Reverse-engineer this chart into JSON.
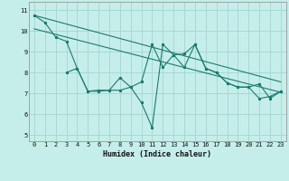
{
  "xlabel": "Humidex (Indice chaleur)",
  "background_color": "#c5eeea",
  "grid_color": "#a8d8d4",
  "line_color": "#1e7a6e",
  "xlim": [
    -0.5,
    23.5
  ],
  "ylim": [
    4.7,
    11.4
  ],
  "xticks": [
    0,
    1,
    2,
    3,
    4,
    5,
    6,
    7,
    8,
    9,
    10,
    11,
    12,
    13,
    14,
    15,
    16,
    17,
    18,
    19,
    20,
    21,
    22,
    23
  ],
  "yticks": [
    5,
    6,
    7,
    8,
    9,
    10,
    11
  ],
  "line1_x": [
    0,
    1,
    2,
    3,
    4,
    5,
    6,
    7,
    8,
    9,
    10,
    11,
    12,
    13,
    14,
    15,
    16,
    17,
    18,
    19,
    20,
    21,
    22,
    23
  ],
  "line1_y": [
    10.75,
    10.4,
    9.7,
    9.5,
    8.2,
    7.1,
    7.1,
    7.15,
    7.15,
    7.3,
    6.55,
    5.35,
    9.35,
    8.85,
    8.9,
    9.35,
    8.2,
    8.0,
    7.5,
    7.3,
    7.3,
    6.75,
    6.85,
    7.1
  ],
  "line2_x": [
    3,
    4,
    5,
    6,
    7,
    8,
    9,
    10,
    11,
    12,
    13,
    14,
    15,
    16,
    17,
    18,
    19,
    20,
    21,
    22,
    23
  ],
  "line2_y": [
    8.0,
    8.2,
    7.1,
    7.15,
    7.15,
    7.75,
    7.3,
    7.55,
    9.35,
    8.25,
    8.85,
    8.25,
    9.35,
    8.2,
    8.0,
    7.5,
    7.3,
    7.3,
    7.45,
    6.75,
    7.1
  ],
  "trend1_x": [
    0,
    23
  ],
  "trend1_y": [
    10.75,
    7.55
  ],
  "trend2_x": [
    0,
    23
  ],
  "trend2_y": [
    10.1,
    7.05
  ]
}
